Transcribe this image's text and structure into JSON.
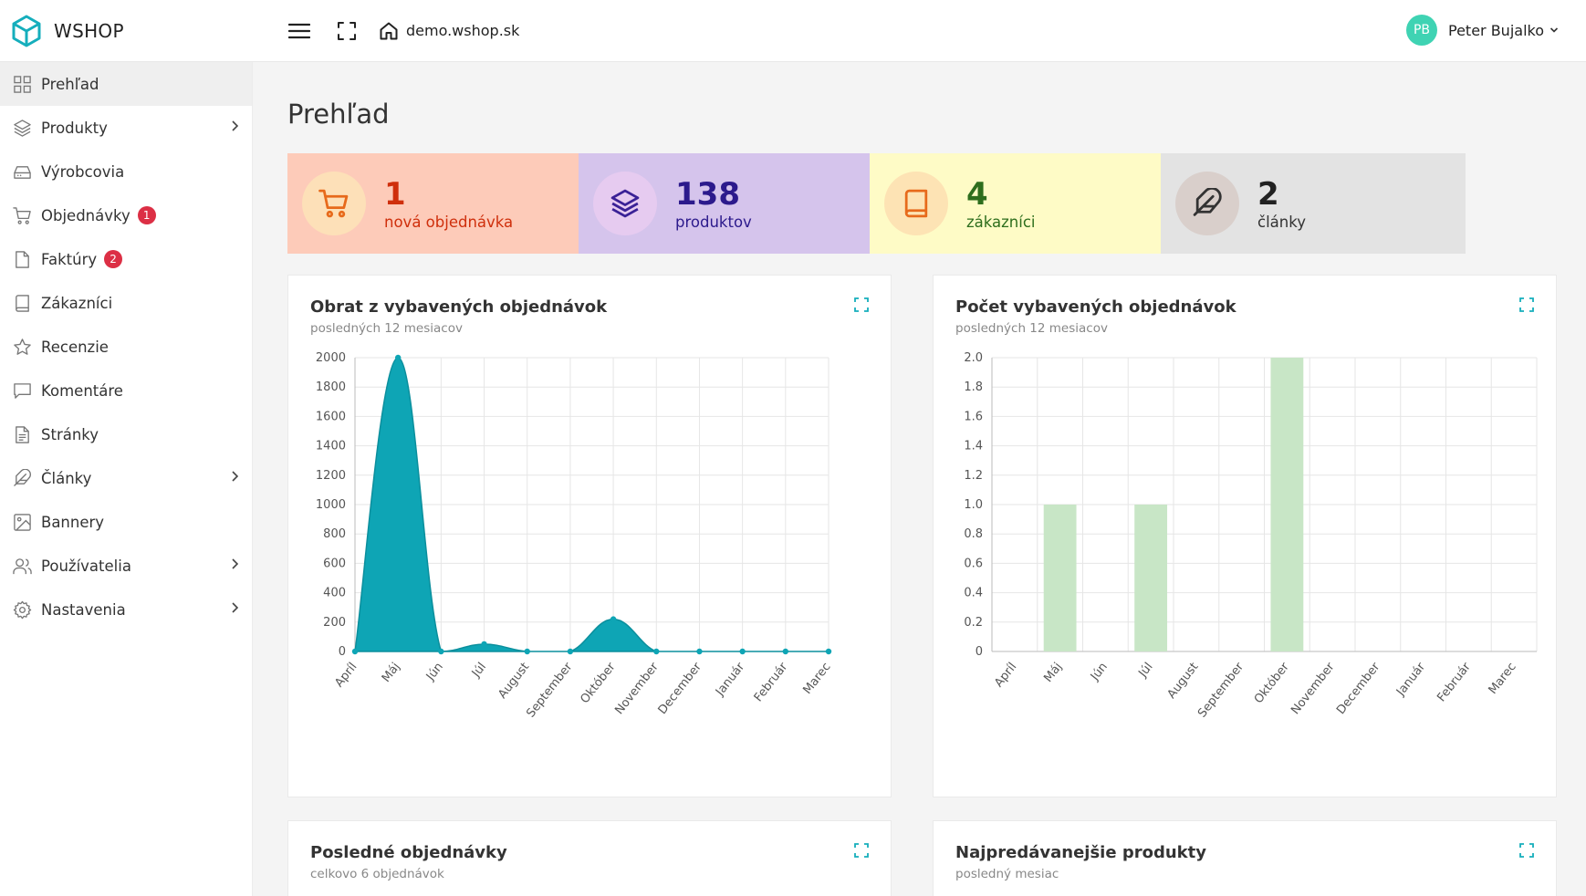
{
  "header": {
    "brand": "WSHOP",
    "site": "demo.wshop.sk",
    "user_initials": "PB",
    "user_name": "Peter Bujalko"
  },
  "sidebar": {
    "items": [
      {
        "label": "Prehľad",
        "icon": "grid-icon",
        "active": true
      },
      {
        "label": "Produkty",
        "icon": "layers-icon",
        "chevron": true
      },
      {
        "label": "Výrobcovia",
        "icon": "drive-icon"
      },
      {
        "label": "Objednávky",
        "icon": "cart-icon",
        "badge": "1"
      },
      {
        "label": "Faktúry",
        "icon": "file-icon",
        "badge": "2"
      },
      {
        "label": "Zákazníci",
        "icon": "book-icon"
      },
      {
        "label": "Recenzie",
        "icon": "star-icon"
      },
      {
        "label": "Komentáre",
        "icon": "message-icon"
      },
      {
        "label": "Stránky",
        "icon": "file-text-icon"
      },
      {
        "label": "Články",
        "icon": "feather-icon",
        "chevron": true
      },
      {
        "label": "Bannery",
        "icon": "image-icon"
      },
      {
        "label": "Používatelia",
        "icon": "users-icon",
        "chevron": true
      },
      {
        "label": "Nastavenia",
        "icon": "settings-icon",
        "chevron": true
      }
    ]
  },
  "page": {
    "title": "Prehľad"
  },
  "stats": [
    {
      "number": "1",
      "label": "nová objednávka",
      "icon": "cart-icon",
      "bg": "#fdcbb9",
      "circle": "#fde0b8",
      "color": "#cf2f0c",
      "iconColor": "#e76a1b"
    },
    {
      "number": "138",
      "label": "produktov",
      "icon": "layers-icon",
      "bg": "#d5c4ec",
      "circle": "#e6cbf0",
      "color": "#2c1a8c",
      "iconColor": "#3a2196"
    },
    {
      "number": "4",
      "label": "zákazníci",
      "icon": "book-icon",
      "bg": "#fefbc6",
      "circle": "#fde3b4",
      "color": "#2e6e1d",
      "iconColor": "#e76a1b"
    },
    {
      "number": "2",
      "label": "články",
      "icon": "feather-icon",
      "bg": "#e3e3e3",
      "circle": "#d9cfcb",
      "color": "#222222",
      "iconColor": "#333333"
    }
  ],
  "cards": {
    "revenue": {
      "title": "Obrat z vybavených objednávok",
      "subtitle": "posledných 12 mesiacov"
    },
    "count": {
      "title": "Počet vybavených objednávok",
      "subtitle": "posledných 12 mesiacov"
    },
    "recent": {
      "title": "Posledné objednávky",
      "subtitle": "celkovo 6 objednávok"
    },
    "top": {
      "title": "Najpredávanejšie produkty",
      "subtitle": "posledný mesiac"
    }
  },
  "chart_data": [
    {
      "type": "area",
      "categories": [
        "Apríl",
        "Máj",
        "Jún",
        "Júl",
        "August",
        "September",
        "Október",
        "November",
        "December",
        "Január",
        "Február",
        "Marec"
      ],
      "values": [
        0,
        2000,
        0,
        50,
        0,
        0,
        220,
        0,
        0,
        0,
        0,
        0
      ],
      "ylim": [
        0,
        2000
      ],
      "yticks": [
        "0",
        "200",
        "400",
        "600",
        "800",
        "1000",
        "1200",
        "1400",
        "1600",
        "1800",
        "2000"
      ],
      "color": "#0ea5b5",
      "grid": true
    },
    {
      "type": "bar",
      "categories": [
        "Apríl",
        "Máj",
        "Jún",
        "Júl",
        "August",
        "September",
        "Október",
        "November",
        "December",
        "Január",
        "Február",
        "Marec"
      ],
      "values": [
        0,
        1,
        0,
        1,
        0,
        0,
        2,
        0,
        0,
        0,
        0,
        0
      ],
      "ylim": [
        0,
        2
      ],
      "yticks": [
        "0",
        "0.2",
        "0.4",
        "0.6",
        "0.8",
        "1.0",
        "1.2",
        "1.4",
        "1.6",
        "1.8",
        "2.0"
      ],
      "color": "#c8e6c6",
      "grid": true
    }
  ]
}
